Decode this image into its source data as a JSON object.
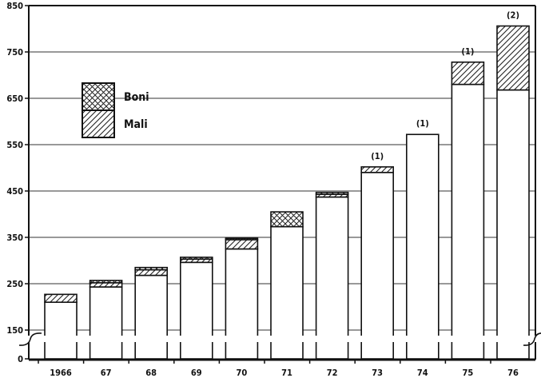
{
  "chart_data": {
    "type": "bar",
    "stacked": true,
    "categories": [
      "1966",
      "67",
      "68",
      "69",
      "70",
      "71",
      "72",
      "73",
      "74",
      "75",
      "76"
    ],
    "series": [
      {
        "name": "",
        "values": [
          210,
          243,
          268,
          296,
          325,
          373,
          437,
          490,
          572,
          680,
          668
        ],
        "pattern": "none"
      },
      {
        "name": "Mali",
        "values": [
          17,
          9,
          12,
          7,
          20,
          0,
          6,
          12,
          0,
          48,
          138
        ],
        "pattern": "diagonal-hatch"
      },
      {
        "name": "Boni",
        "values": [
          0,
          5,
          5,
          4,
          3,
          32,
          4,
          0,
          0,
          0,
          0
        ],
        "pattern": "cross-hatch"
      }
    ],
    "annotations": [
      "",
      "",
      "",
      "",
      "",
      "",
      "",
      "(1)",
      "(1)",
      "(1)",
      "(2)"
    ],
    "yticks": [
      0,
      150,
      250,
      350,
      450,
      550,
      650,
      750,
      850
    ],
    "ylim": [
      0,
      850
    ],
    "axis_break": true,
    "grid": "horizontal",
    "legend_position": "upper-left",
    "title": "",
    "xlabel": "",
    "ylabel": ""
  },
  "legend": {
    "items": [
      {
        "label": "Boni",
        "pattern": "cross-hatch"
      },
      {
        "label": "Mali",
        "pattern": "diagonal-hatch"
      }
    ]
  }
}
